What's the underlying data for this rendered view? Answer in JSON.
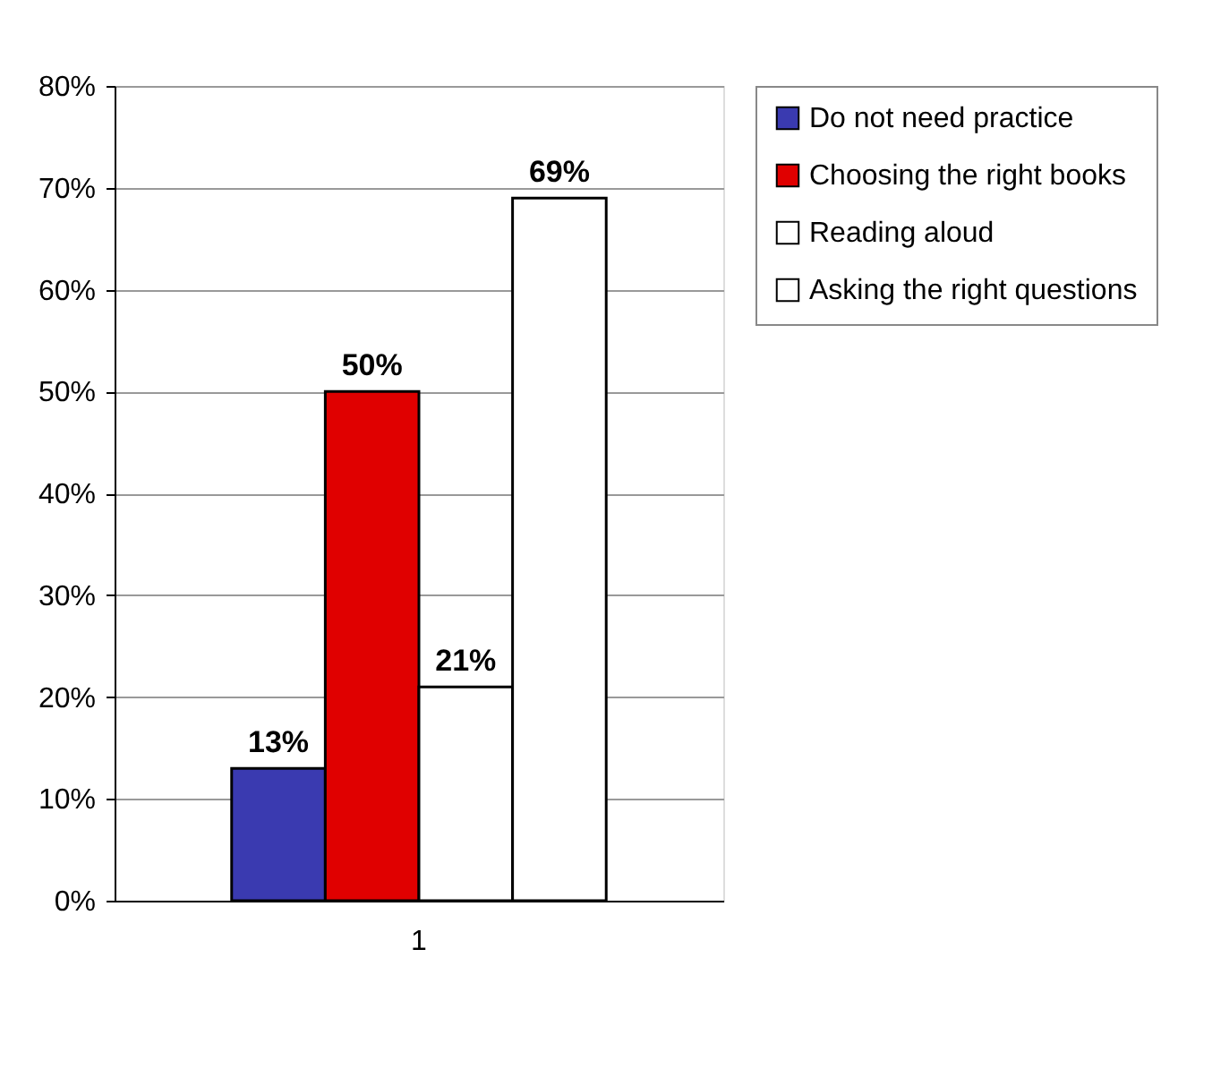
{
  "chart_data": {
    "type": "bar",
    "categories": [
      "1"
    ],
    "series": [
      {
        "name": "Do not need practice",
        "color": "#3a3ab0",
        "values": [
          13
        ],
        "value_labels": [
          "13%"
        ]
      },
      {
        "name": "Choosing the right books",
        "color": "#e00000",
        "values": [
          50
        ],
        "value_labels": [
          "50%"
        ]
      },
      {
        "name": "Reading aloud",
        "color": "#ffffff",
        "values": [
          21
        ],
        "value_labels": [
          "21%"
        ]
      },
      {
        "name": "Asking the right questions",
        "color": "#ffffff",
        "values": [
          69
        ],
        "value_labels": [
          "69%"
        ]
      }
    ],
    "ylim": [
      0,
      80
    ],
    "yticks": [
      {
        "value": 0,
        "label": "0%"
      },
      {
        "value": 10,
        "label": "10%"
      },
      {
        "value": 20,
        "label": "20%"
      },
      {
        "value": 30,
        "label": "30%"
      },
      {
        "value": 40,
        "label": "40%"
      },
      {
        "value": 50,
        "label": "50%"
      },
      {
        "value": 60,
        "label": "60%"
      },
      {
        "value": 70,
        "label": "70%"
      },
      {
        "value": 80,
        "label": "80%"
      }
    ],
    "grid": "y",
    "legend": "right"
  }
}
